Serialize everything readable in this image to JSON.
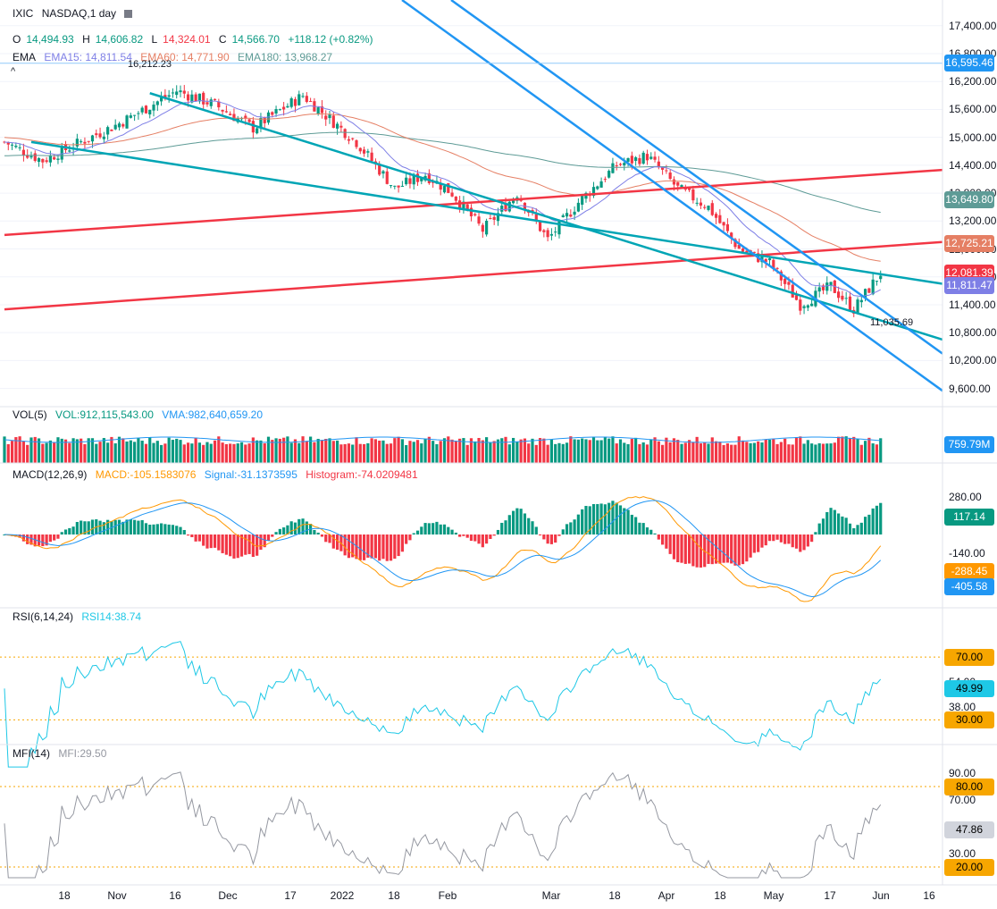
{
  "header": {
    "symbol": "IXIC",
    "name": "NASDAQ,1 day",
    "menu_icon": "menu-icon",
    "open_label": "O",
    "open": "14,494.93",
    "high_label": "H",
    "high": "14,606.82",
    "low_label": "L",
    "low": "14,324.01",
    "close_label": "C",
    "close": "14,566.70",
    "change": "+118.12 (+0.82%)"
  },
  "ema_legend": {
    "label": "EMA",
    "ema15": "EMA15: 14,811.54",
    "ema60": "EMA60: 14,771.90",
    "ema180": "EMA180: 13,968.27",
    "collapse_icon": "chevron-up-icon"
  },
  "annotations": {
    "high": "16,212.23",
    "low": "11,035.69"
  },
  "price_axis": [
    "17,400.00",
    "16,800.00",
    "16,200.00",
    "15,600.00",
    "15,000.00",
    "14,400.00",
    "13,800.00",
    "13,200.00",
    "12,600.00",
    "12,000.00",
    "11,400.00",
    "10,800.00",
    "10,200.00",
    "9,600.00"
  ],
  "price_tags": [
    {
      "value": "16,595.46",
      "color": "#2196f3"
    },
    {
      "value": "13,649.80",
      "color": "#5e9b96"
    },
    {
      "value": "12,725.21",
      "color": "#e57f64"
    },
    {
      "value": "12,081.39",
      "color": "#f23645"
    },
    {
      "value": "11,811.47",
      "color": "#7e7fe6"
    }
  ],
  "volume": {
    "label": "VOL(5)",
    "vol": "VOL:912,115,543.00",
    "vma": "VMA:982,640,659.20",
    "tag": "759.79M",
    "tag_color": "#2196f3"
  },
  "macd": {
    "label": "MACD(12,26,9)",
    "macd": "MACD:-105.1583076",
    "signal": "Signal:-31.1373595",
    "histogram": "Histogram:-74.0209481",
    "axis": [
      "280.00",
      "-140.00"
    ],
    "tags": [
      {
        "value": "117.14",
        "color": "#089981"
      },
      {
        "value": "-288.45",
        "color": "#ff9800"
      },
      {
        "value": "-405.58",
        "color": "#2196f3"
      }
    ]
  },
  "rsi": {
    "label": "RSI(6,14,24)",
    "value": "RSI14:38.74",
    "axis": [
      "54.00",
      "38.00"
    ],
    "tags": [
      {
        "value": "70.00",
        "color": "#f7a600"
      },
      {
        "value": "49.99",
        "color": "#1ec8e6"
      },
      {
        "value": "30.00",
        "color": "#f7a600"
      }
    ]
  },
  "mfi": {
    "label": "MFI(14)",
    "value": "MFI:29.50",
    "axis": [
      "90.00",
      "70.00",
      "30.00"
    ],
    "tags": [
      {
        "value": "80.00",
        "color": "#f7a600"
      },
      {
        "value": "47.86",
        "color": "#d1d4dc"
      },
      {
        "value": "20.00",
        "color": "#f7a600"
      }
    ]
  },
  "x_axis": [
    "18",
    "Nov",
    "16",
    "Dec",
    "17",
    "2022",
    "18",
    "Feb",
    "Mar",
    "18",
    "Apr",
    "18",
    "May",
    "17",
    "Jun",
    "16"
  ],
  "colors": {
    "up": "#089981",
    "down": "#f23645",
    "ema15": "#7e7fe6",
    "ema60": "#e57f64",
    "ema180": "#5e9b96",
    "trend_blue": "#2196f3",
    "trend_teal": "#00a5b5",
    "trend_red": "#f23645",
    "rsi": "#1ec8e6",
    "mfi": "#9598a1",
    "macd": "#ff9800",
    "signal": "#2196f3"
  },
  "chart_data": {
    "type": "candlestick",
    "symbol": "IXIC",
    "x_labels": [
      "18",
      "Nov",
      "16",
      "Dec",
      "17",
      "2022",
      "18",
      "Feb",
      "Mar",
      "18",
      "Apr",
      "18",
      "May",
      "17",
      "Jun",
      "16"
    ],
    "ylim": [
      9400,
      17800
    ],
    "close_path": [
      {
        "x": 0,
        "close": 14900
      },
      {
        "x": 10,
        "close": 14500
      },
      {
        "x": 30,
        "close": 15300
      },
      {
        "x": 45,
        "close": 16000
      },
      {
        "x": 55,
        "close": 15700
      },
      {
        "x": 65,
        "close": 15200
      },
      {
        "x": 78,
        "close": 15900
      },
      {
        "x": 85,
        "close": 15400
      },
      {
        "x": 92,
        "close": 14900
      },
      {
        "x": 102,
        "close": 13900
      },
      {
        "x": 110,
        "close": 14200
      },
      {
        "x": 117,
        "close": 13800
      },
      {
        "x": 125,
        "close": 13000
      },
      {
        "x": 134,
        "close": 13800
      },
      {
        "x": 142,
        "close": 12800
      },
      {
        "x": 150,
        "close": 13600
      },
      {
        "x": 160,
        "close": 14400
      },
      {
        "x": 168,
        "close": 14600
      },
      {
        "x": 176,
        "close": 13900
      },
      {
        "x": 184,
        "close": 13500
      },
      {
        "x": 192,
        "close": 12600
      },
      {
        "x": 200,
        "close": 12300
      },
      {
        "x": 208,
        "close": 11400
      },
      {
        "x": 216,
        "close": 11800
      },
      {
        "x": 222,
        "close": 11300
      },
      {
        "x": 229,
        "close": 12081
      }
    ],
    "emas": [
      {
        "name": "EMA15",
        "last": 11811.47
      },
      {
        "name": "EMA60",
        "last": 12725.21
      },
      {
        "name": "EMA180",
        "last": 13649.8
      }
    ],
    "indicators": {
      "volume_last": "759.79M",
      "macd_last": -288.45,
      "signal_last": -405.58,
      "histogram_last": 117.14,
      "rsi_last": 49.99,
      "mfi_last": 47.86
    }
  }
}
